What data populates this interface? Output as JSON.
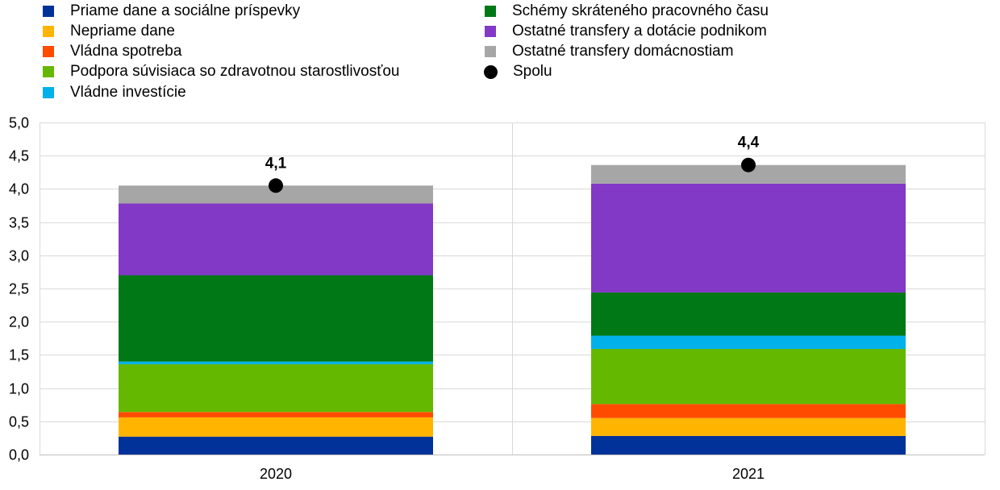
{
  "chart_data": {
    "type": "bar",
    "stacked": true,
    "categories": [
      "2020",
      "2021"
    ],
    "series": [
      {
        "name": "Priame dane a sociálne príspevky",
        "color": "#003299",
        "values": [
          0.27,
          0.28
        ]
      },
      {
        "name": "Nepriame dane",
        "color": "#FFB400",
        "values": [
          0.29,
          0.27
        ]
      },
      {
        "name": "Vládna spotreba",
        "color": "#FF4B00",
        "values": [
          0.08,
          0.21
        ]
      },
      {
        "name": "Podpora súvisiaca so zdravotnou starostlivosťou",
        "color": "#65B800",
        "values": [
          0.72,
          0.83
        ]
      },
      {
        "name": "Vládne investície",
        "color": "#00B1EA",
        "values": [
          0.04,
          0.2
        ]
      },
      {
        "name": "Schémy skráteného pracovného času",
        "color": "#007816",
        "values": [
          1.3,
          0.65
        ]
      },
      {
        "name": "Ostatné transfery a dotácie podnikom",
        "color": "#8139C6",
        "values": [
          1.08,
          1.64
        ]
      },
      {
        "name": "Ostatné transfery domácnostiam",
        "color": "#A6A6A6",
        "values": [
          0.27,
          0.28
        ]
      }
    ],
    "total": {
      "name": "Spolu",
      "color": "#000000",
      "values": [
        4.05,
        4.36
      ],
      "labels": [
        "4,1",
        "4,4"
      ]
    },
    "ylim": [
      0,
      5
    ],
    "yticks": [
      "0,0",
      "0,5",
      "1,0",
      "1,5",
      "2,0",
      "2,5",
      "3,0",
      "3,5",
      "4,0",
      "4,5",
      "5,0"
    ],
    "xlabel": "",
    "ylabel": "",
    "title": "",
    "grid": true,
    "legend_position": "top"
  }
}
